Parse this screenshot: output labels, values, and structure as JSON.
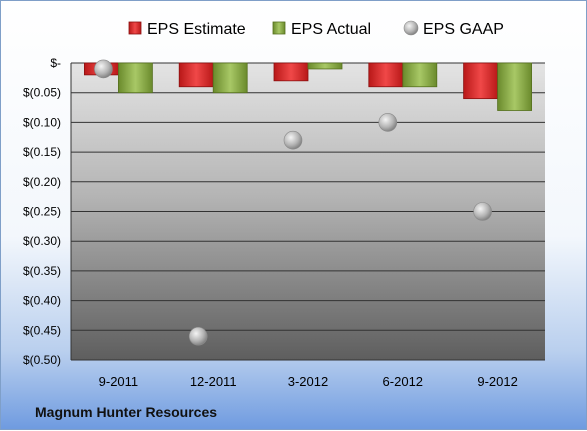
{
  "company": "Magnum Hunter Resources",
  "chart_data": {
    "type": "bar",
    "categories": [
      "9-2011",
      "12-2011",
      "3-2012",
      "6-2012",
      "9-2012"
    ],
    "series": [
      {
        "name": "EPS Estimate",
        "type": "bar",
        "color": "#e03030",
        "values": [
          -0.02,
          -0.04,
          -0.03,
          -0.04,
          -0.06
        ]
      },
      {
        "name": "EPS Actual",
        "type": "bar",
        "color": "#8fb04a",
        "values": [
          -0.05,
          -0.05,
          -0.01,
          -0.04,
          -0.08
        ]
      },
      {
        "name": "EPS GAAP",
        "type": "scatter",
        "color": "#b8b8b8",
        "values": [
          -0.01,
          -0.46,
          -0.13,
          -0.1,
          -0.25
        ]
      }
    ],
    "yticks": [
      0,
      -0.05,
      -0.1,
      -0.15,
      -0.2,
      -0.25,
      -0.3,
      -0.35,
      -0.4,
      -0.45,
      -0.5
    ],
    "ytick_labels": [
      "$-",
      "$(0.05)",
      "$(0.10)",
      "$(0.15)",
      "$(0.20)",
      "$(0.25)",
      "$(0.30)",
      "$(0.35)",
      "$(0.40)",
      "$(0.45)",
      "$(0.50)"
    ],
    "ylim": [
      -0.5,
      0
    ],
    "grid": true,
    "legend": "top"
  }
}
